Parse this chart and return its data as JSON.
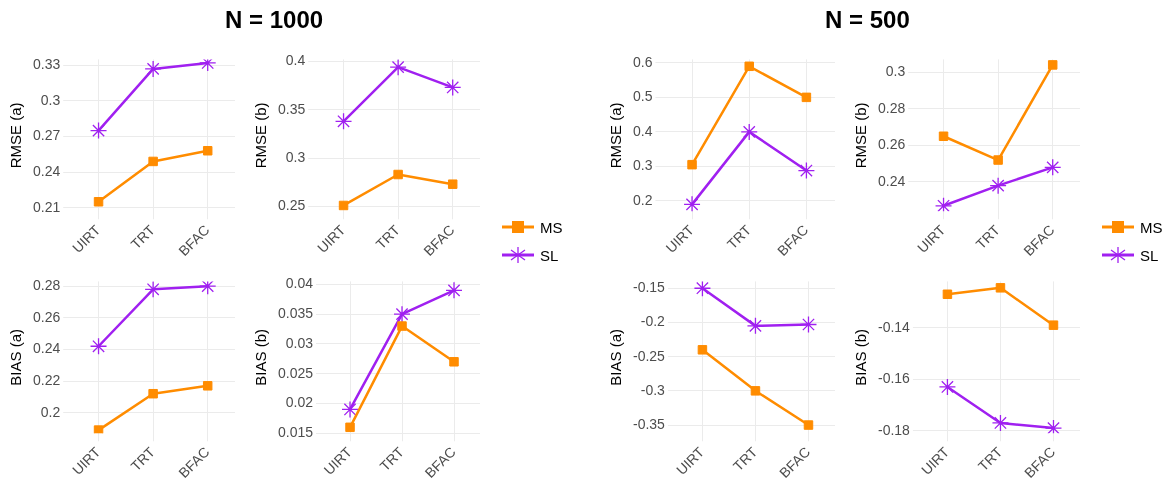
{
  "chart_data": [
    {
      "type": "line",
      "title": "N = 1000",
      "ylabel": "RMSE (a)",
      "categories": [
        "UIRT",
        "TRT",
        "BFAC"
      ],
      "ylim": [
        0.207,
        0.335
      ],
      "yticks": [
        0.21,
        0.24,
        0.27,
        0.3,
        0.33
      ],
      "grid": true,
      "series": [
        {
          "color": "#ff8c00",
          "marker": "square",
          "values": [
            0.215,
            0.249,
            0.258
          ]
        },
        {
          "color": "#a020f0",
          "marker": "cross",
          "values": [
            0.275,
            0.327,
            0.332
          ]
        }
      ]
    },
    {
      "type": "line",
      "ylabel": "RMSE (b)",
      "categories": [
        "UIRT",
        "TRT",
        "BFAC"
      ],
      "ylim": [
        0.245,
        0.402
      ],
      "yticks": [
        0.25,
        0.3,
        0.35,
        0.4
      ],
      "grid": true,
      "legend": "right",
      "series": [
        {
          "name": "MS",
          "color": "#ff8c00",
          "marker": "square",
          "values": [
            0.251,
            0.283,
            0.273
          ]
        },
        {
          "name": "SL",
          "color": "#a020f0",
          "marker": "cross",
          "values": [
            0.338,
            0.394,
            0.373
          ]
        }
      ]
    },
    {
      "type": "line",
      "ylabel": "BIAS (a)",
      "categories": [
        "UIRT",
        "TRT",
        "BFAC"
      ],
      "ylim": [
        0.187,
        0.283
      ],
      "yticks": [
        0.2,
        0.22,
        0.24,
        0.26,
        0.28
      ],
      "grid": true,
      "series": [
        {
          "color": "#ff8c00",
          "marker": "square",
          "values": [
            0.189,
            0.212,
            0.217
          ]
        },
        {
          "color": "#a020f0",
          "marker": "cross",
          "values": [
            0.242,
            0.278,
            0.28
          ]
        }
      ]
    },
    {
      "type": "line",
      "ylabel": "BIAS (b)",
      "categories": [
        "UIRT",
        "TRT",
        "BFAC"
      ],
      "ylim": [
        0.015,
        0.0405
      ],
      "yticks": [
        0.015,
        0.02,
        0.025,
        0.03,
        0.035,
        0.04
      ],
      "grid": true,
      "series": [
        {
          "color": "#ff8c00",
          "marker": "square",
          "values": [
            0.016,
            0.033,
            0.027
          ]
        },
        {
          "color": "#a020f0",
          "marker": "cross",
          "values": [
            0.019,
            0.035,
            0.039
          ]
        }
      ]
    },
    {
      "type": "line",
      "title": "N = 500",
      "ylabel": "RMSE (a)",
      "categories": [
        "UIRT",
        "TRT",
        "BFAC"
      ],
      "ylim": [
        0.17,
        0.61
      ],
      "yticks": [
        0.2,
        0.3,
        0.4,
        0.5,
        0.6
      ],
      "grid": true,
      "series": [
        {
          "color": "#ff8c00",
          "marker": "square",
          "values": [
            0.305,
            0.59,
            0.5
          ]
        },
        {
          "color": "#a020f0",
          "marker": "cross",
          "values": [
            0.19,
            0.4,
            0.288
          ]
        }
      ]
    },
    {
      "type": "line",
      "ylabel": "RMSE (b)",
      "categories": [
        "UIRT",
        "TRT",
        "BFAC"
      ],
      "ylim": [
        0.224,
        0.307
      ],
      "yticks": [
        0.24,
        0.26,
        0.28,
        0.3
      ],
      "grid": true,
      "legend": "right",
      "series": [
        {
          "name": "MS",
          "color": "#ff8c00",
          "marker": "square",
          "values": [
            0.265,
            0.252,
            0.304
          ]
        },
        {
          "name": "SL",
          "color": "#a020f0",
          "marker": "cross",
          "values": [
            0.227,
            0.238,
            0.248
          ]
        }
      ]
    },
    {
      "type": "line",
      "ylabel": "BIAS (a)",
      "categories": [
        "UIRT",
        "TRT",
        "BFAC"
      ],
      "ylim": [
        -0.362,
        -0.14
      ],
      "yticks": [
        -0.35,
        -0.3,
        -0.25,
        -0.2,
        -0.15
      ],
      "grid": true,
      "series": [
        {
          "color": "#ff8c00",
          "marker": "square",
          "values": [
            -0.24,
            -0.3,
            -0.35
          ]
        },
        {
          "color": "#a020f0",
          "marker": "cross",
          "values": [
            -0.15,
            -0.205,
            -0.203
          ]
        }
      ]
    },
    {
      "type": "line",
      "ylabel": "BIAS (b)",
      "categories": [
        "UIRT",
        "TRT",
        "BFAC"
      ],
      "ylim": [
        -0.181,
        -0.122
      ],
      "yticks": [
        -0.18,
        -0.16,
        -0.14
      ],
      "grid": true,
      "series": [
        {
          "color": "#ff8c00",
          "marker": "square",
          "values": [
            -0.127,
            -0.1245,
            -0.139
          ]
        },
        {
          "color": "#a020f0",
          "marker": "cross",
          "values": [
            -0.163,
            -0.177,
            -0.179
          ]
        }
      ]
    }
  ]
}
